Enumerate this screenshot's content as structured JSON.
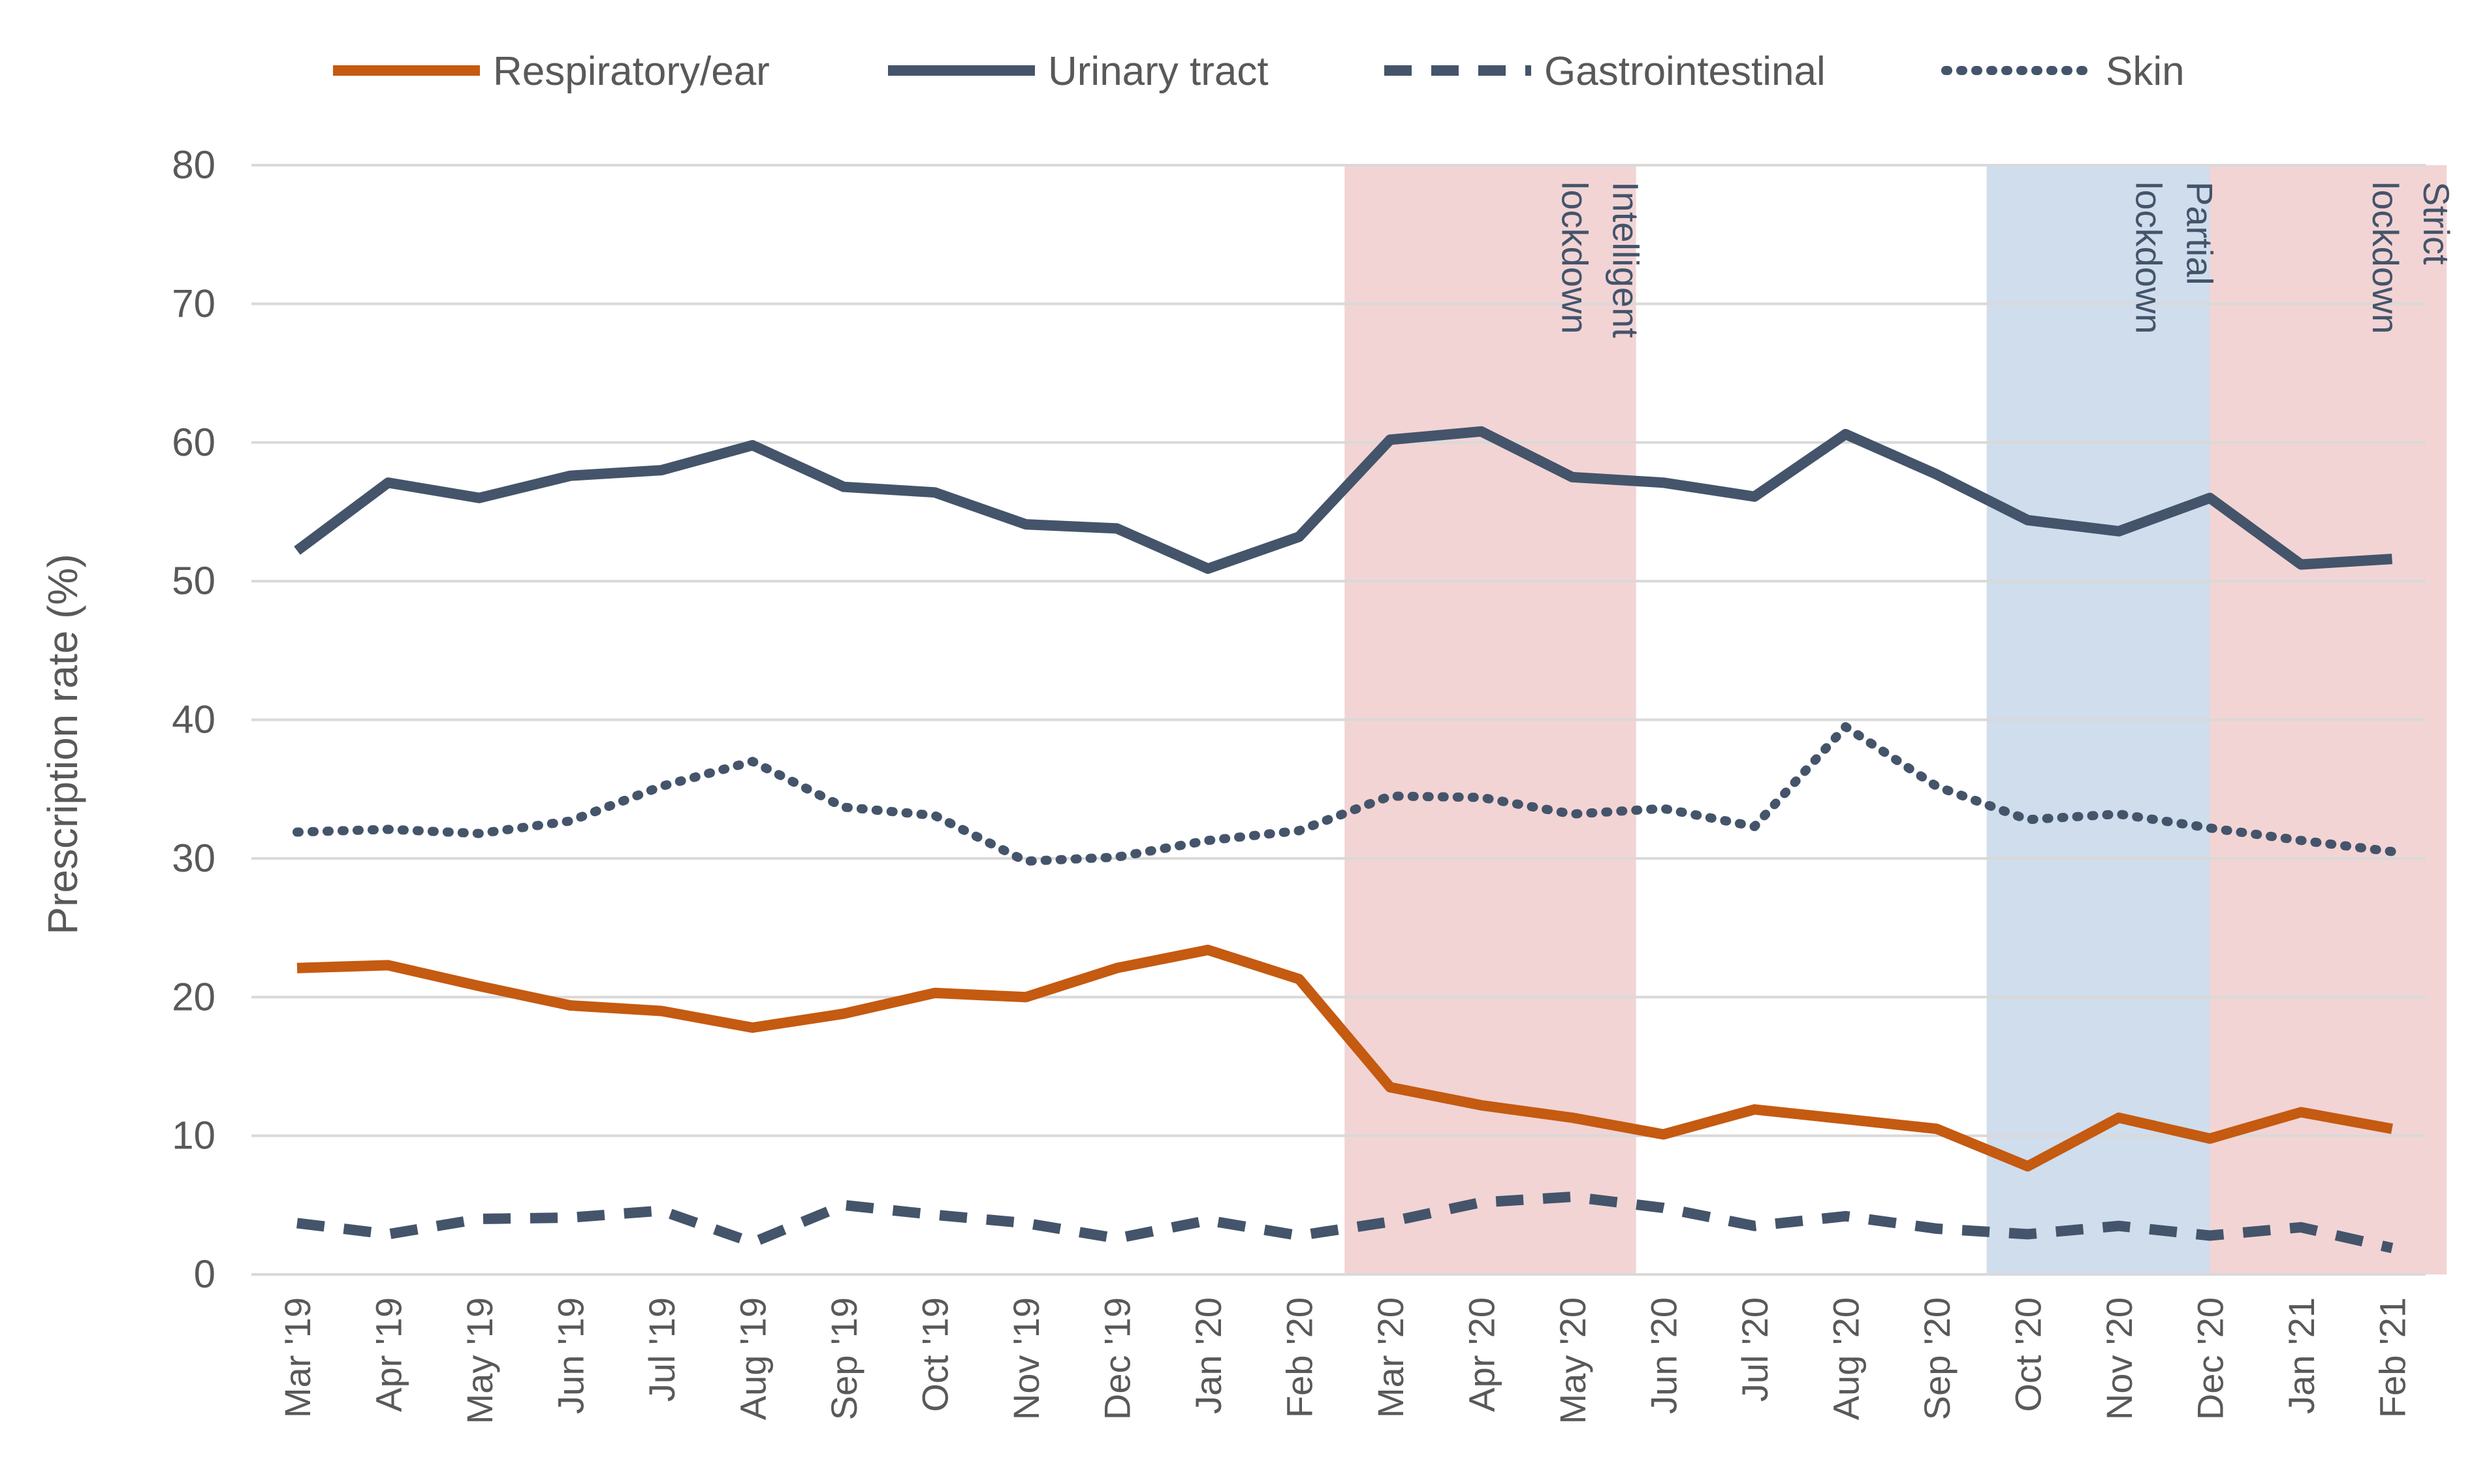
{
  "chart_data": {
    "type": "line",
    "title": "",
    "xlabel": "",
    "ylabel": "Prescription rate (%)",
    "ylim": [
      0,
      80
    ],
    "yticks": [
      0,
      10,
      20,
      30,
      40,
      50,
      60,
      70,
      80
    ],
    "grid": true,
    "legend_position": "top",
    "categories": [
      "Mar '19",
      "Apr '19",
      "May '19",
      "Jun '19",
      "Jul '19",
      "Aug '19",
      "Sep '19",
      "Oct '19",
      "Nov '19",
      "Dec '19",
      "Jan '20",
      "Feb '20",
      "Mar '20",
      "Apr '20",
      "May '20",
      "Jun '20",
      "Jul '20",
      "Aug '20",
      "Sep '20",
      "Oct '20",
      "Nov '20",
      "Dec '20",
      "Jan '21",
      "Feb '21"
    ],
    "series": [
      {
        "name": "Respiratory/ear",
        "style": "solid",
        "color": "#C55A11",
        "values": [
          22.1,
          22.3,
          20.8,
          19.4,
          19.0,
          17.8,
          18.8,
          20.3,
          20.0,
          22.1,
          23.4,
          21.3,
          13.5,
          12.2,
          11.3,
          10.1,
          11.9,
          11.2,
          10.5,
          7.8,
          11.3,
          9.8,
          11.7,
          10.5
        ]
      },
      {
        "name": "Urinary tract",
        "style": "solid",
        "color": "#44546A",
        "values": [
          52.2,
          57.1,
          56.0,
          57.6,
          58.0,
          59.8,
          56.8,
          56.4,
          54.1,
          53.8,
          50.9,
          53.2,
          60.2,
          60.8,
          57.5,
          57.1,
          56.1,
          60.6,
          57.7,
          54.4,
          53.6,
          56.0,
          51.2,
          51.6
        ]
      },
      {
        "name": "Gastrointestinal",
        "style": "dashed",
        "color": "#44546A",
        "values": [
          3.7,
          2.9,
          4.0,
          4.1,
          4.6,
          2.3,
          5.0,
          4.3,
          3.7,
          2.6,
          3.9,
          2.8,
          3.8,
          5.2,
          5.6,
          4.8,
          3.5,
          4.2,
          3.3,
          2.9,
          3.5,
          2.8,
          3.4,
          1.9
        ]
      },
      {
        "name": "Skin",
        "style": "dotted",
        "color": "#44546A",
        "values": [
          31.9,
          32.1,
          31.8,
          32.7,
          35.2,
          37.0,
          33.7,
          33.1,
          29.8,
          30.1,
          31.3,
          32.0,
          34.5,
          34.4,
          33.2,
          33.6,
          32.3,
          39.5,
          35.2,
          32.8,
          33.2,
          32.2,
          31.3,
          30.5
        ]
      }
    ],
    "shaded_regions": [
      {
        "label": "Intelligent lockdown",
        "start": 11.5,
        "end": 14.7,
        "color": "#F2D4D5",
        "text_color": "#44546A"
      },
      {
        "label": "Partial lockdown",
        "start": 18.55,
        "end": 21.0,
        "color": "#CFDDED",
        "text_color": "#44546A"
      },
      {
        "label": "Strict lockdown",
        "start": 21.0,
        "end": 23.6,
        "color": "#F2D4D5",
        "text_color": "#44546A"
      }
    ],
    "axis_color": "#D9D9D9",
    "tick_text_color": "#595959"
  }
}
